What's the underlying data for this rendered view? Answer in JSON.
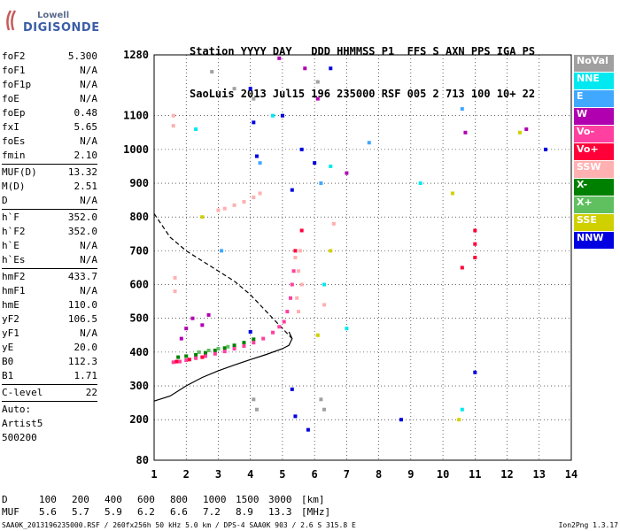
{
  "logo": {
    "brand": "Lowell",
    "product": "DIGISONDE"
  },
  "header": {
    "line1": "Station YYYY DAY   DDD HHMMSS P1  FFS S AXN PPS IGA PS",
    "line2": "SaoLuis 2013 Jul15 196 235000 RSF 005 2 713 100 10+ 22"
  },
  "params": {
    "block1": [
      {
        "name": "foF2",
        "value": "5.300"
      },
      {
        "name": "foF1",
        "value": "N/A"
      },
      {
        "name": "foF1p",
        "value": "N/A"
      },
      {
        "name": "foE",
        "value": "N/A"
      },
      {
        "name": "foEp",
        "value": "0.48"
      },
      {
        "name": "fxI",
        "value": "5.65"
      },
      {
        "name": "foEs",
        "value": "N/A"
      },
      {
        "name": "fmin",
        "value": "2.10"
      }
    ],
    "block2": [
      {
        "name": "MUF(D)",
        "value": "13.32"
      },
      {
        "name": "M(D)",
        "value": "2.51"
      },
      {
        "name": "D",
        "value": "N/A"
      }
    ],
    "block3": [
      {
        "name": "h`F",
        "value": "352.0"
      },
      {
        "name": "h`F2",
        "value": "352.0"
      },
      {
        "name": "h`E",
        "value": "N/A"
      },
      {
        "name": "h`Es",
        "value": "N/A"
      }
    ],
    "block4": [
      {
        "name": "hmF2",
        "value": "433.7"
      },
      {
        "name": "hmF1",
        "value": "N/A"
      },
      {
        "name": "hmE",
        "value": "110.0"
      },
      {
        "name": "yF2",
        "value": "106.5"
      },
      {
        "name": "yF1",
        "value": "N/A"
      },
      {
        "name": "yE",
        "value": "20.0"
      },
      {
        "name": "B0",
        "value": "112.3"
      },
      {
        "name": "B1",
        "value": "1.71"
      }
    ],
    "block5": [
      {
        "name": "C-level",
        "value": "22"
      }
    ],
    "autoscaling": [
      "Auto:",
      "Artist5",
      "500200"
    ]
  },
  "legend": [
    {
      "label": "NoVal",
      "color": "#a0a0a0"
    },
    {
      "label": "NNE",
      "color": "#00e8f0"
    },
    {
      "label": "E",
      "color": "#40a8ff"
    },
    {
      "label": "W",
      "color": "#b000b0"
    },
    {
      "label": "Vo-",
      "color": "#ff40a0"
    },
    {
      "label": "Vo+",
      "color": "#ff0038"
    },
    {
      "label": "SSW",
      "color": "#ffb0b0"
    },
    {
      "label": "X-",
      "color": "#008000"
    },
    {
      "label": "X+",
      "color": "#60c060"
    },
    {
      "label": "SSE",
      "color": "#d0d000"
    },
    {
      "label": "NNW",
      "color": "#0000e0"
    }
  ],
  "muf_table": {
    "d_label": "D",
    "d_values": [
      "100",
      "200",
      "400",
      "600",
      "800",
      "1000",
      "1500",
      "3000"
    ],
    "d_unit": "[km]",
    "muf_label": "MUF",
    "muf_values": [
      "5.6",
      "5.7",
      "5.9",
      "6.2",
      "6.6",
      "7.2",
      "8.9",
      "13.3"
    ],
    "muf_unit": "[MHz]"
  },
  "footer": {
    "left": "SAA0K_2013196235000.RSF / 260fx256h 50 kHz 5.0 km / DPS-4 SAA0K 903 / 2.6 S 315.8 E",
    "right": "Ion2Png 1.3.17"
  },
  "chart_data": {
    "type": "scatter",
    "title": "",
    "xlabel": "",
    "ylabel": "",
    "xlim": [
      1,
      14
    ],
    "ylim": [
      80,
      1280
    ],
    "x_ticks": [
      1,
      2,
      3,
      4,
      5,
      6,
      7,
      8,
      9,
      10,
      11,
      12,
      13,
      14
    ],
    "y_ticks": [
      80,
      200,
      300,
      400,
      500,
      600,
      700,
      800,
      900,
      1000,
      1100,
      1280
    ],
    "grid": true,
    "legend_position": "right",
    "series": [
      {
        "name": "X-",
        "color": "#008000",
        "points": [
          [
            1.75,
            385
          ],
          [
            2.0,
            388
          ],
          [
            2.3,
            392
          ],
          [
            2.6,
            398
          ],
          [
            2.9,
            405
          ],
          [
            3.2,
            412
          ],
          [
            3.5,
            420
          ],
          [
            3.8,
            428
          ],
          [
            4.1,
            438
          ]
        ]
      },
      {
        "name": "Vo-",
        "color": "#ff40a0",
        "points": [
          [
            1.6,
            370
          ],
          [
            1.8,
            372
          ],
          [
            2.0,
            376
          ],
          [
            2.3,
            382
          ],
          [
            2.6,
            388
          ],
          [
            2.9,
            395
          ],
          [
            3.2,
            402
          ],
          [
            3.5,
            410
          ],
          [
            3.8,
            418
          ],
          [
            4.1,
            428
          ],
          [
            4.4,
            440
          ],
          [
            4.7,
            458
          ],
          [
            4.9,
            475
          ],
          [
            5.05,
            490
          ],
          [
            5.15,
            520
          ],
          [
            5.25,
            560
          ],
          [
            5.3,
            600
          ],
          [
            5.35,
            640
          ]
        ]
      },
      {
        "name": "SSW",
        "color": "#ffb0b0",
        "points": [
          [
            1.65,
            620
          ],
          [
            1.65,
            580
          ],
          [
            3.0,
            820
          ],
          [
            3.2,
            825
          ],
          [
            3.5,
            835
          ],
          [
            3.8,
            845
          ],
          [
            4.1,
            858
          ],
          [
            4.3,
            870
          ],
          [
            5.4,
            680
          ],
          [
            5.5,
            640
          ],
          [
            5.6,
            600
          ],
          [
            5.45,
            560
          ],
          [
            5.5,
            520
          ],
          [
            5.55,
            700
          ],
          [
            1.6,
            1100
          ],
          [
            1.6,
            1070
          ],
          [
            6.3,
            540
          ],
          [
            6.6,
            780
          ]
        ]
      },
      {
        "name": "Vo+",
        "color": "#ff0038",
        "points": [
          [
            1.7,
            372
          ],
          [
            2.1,
            378
          ],
          [
            2.5,
            385
          ],
          [
            5.4,
            700
          ],
          [
            5.6,
            760
          ],
          [
            11.0,
            760
          ],
          [
            11.0,
            720
          ],
          [
            11.0,
            680
          ],
          [
            10.6,
            650
          ]
        ]
      },
      {
        "name": "W",
        "color": "#b000b0",
        "points": [
          [
            2.0,
            470
          ],
          [
            2.5,
            480
          ],
          [
            2.2,
            500
          ],
          [
            2.7,
            510
          ],
          [
            1.85,
            440
          ],
          [
            4.9,
            1270
          ],
          [
            5.7,
            1240
          ],
          [
            6.1,
            1150
          ],
          [
            7.0,
            930
          ],
          [
            10.7,
            1050
          ],
          [
            12.6,
            1060
          ]
        ]
      },
      {
        "name": "NNW",
        "color": "#0000e0",
        "points": [
          [
            4.0,
            1180
          ],
          [
            4.1,
            1080
          ],
          [
            4.2,
            980
          ],
          [
            5.0,
            1100
          ],
          [
            5.3,
            880
          ],
          [
            5.6,
            1000
          ],
          [
            6.0,
            960
          ],
          [
            6.5,
            1240
          ],
          [
            4.0,
            460
          ],
          [
            5.3,
            290
          ],
          [
            5.4,
            210
          ],
          [
            5.8,
            170
          ],
          [
            8.7,
            200
          ],
          [
            11.0,
            340
          ],
          [
            13.2,
            1000
          ]
        ]
      },
      {
        "name": "NNE",
        "color": "#00e8f0",
        "points": [
          [
            2.3,
            1060
          ],
          [
            4.7,
            1100
          ],
          [
            6.3,
            600
          ],
          [
            6.5,
            950
          ],
          [
            7.0,
            470
          ],
          [
            9.3,
            900
          ],
          [
            10.6,
            230
          ]
        ]
      },
      {
        "name": "E",
        "color": "#40a8ff",
        "points": [
          [
            3.1,
            700
          ],
          [
            4.3,
            960
          ],
          [
            6.2,
            900
          ],
          [
            7.7,
            1020
          ],
          [
            10.6,
            1120
          ]
        ]
      },
      {
        "name": "SSE",
        "color": "#d0d000",
        "points": [
          [
            2.5,
            800
          ],
          [
            6.1,
            450
          ],
          [
            6.5,
            700
          ],
          [
            10.5,
            200
          ],
          [
            10.3,
            870
          ],
          [
            12.4,
            1050
          ]
        ]
      },
      {
        "name": "X+",
        "color": "#60c060",
        "points": [
          [
            2.4,
            400
          ],
          [
            2.7,
            405
          ],
          [
            3.0,
            410
          ],
          [
            3.3,
            416
          ]
        ]
      },
      {
        "name": "NoVal",
        "color": "#a0a0a0",
        "points": [
          [
            2.8,
            1230
          ],
          [
            3.5,
            1180
          ],
          [
            4.1,
            1150
          ],
          [
            4.1,
            260
          ],
          [
            4.2,
            230
          ],
          [
            6.2,
            260
          ],
          [
            6.3,
            230
          ],
          [
            6.1,
            1200
          ]
        ]
      }
    ],
    "curves": [
      {
        "name": "profile_solid",
        "color": "#000000",
        "style": "solid",
        "points": [
          [
            1,
            255
          ],
          [
            1.5,
            270
          ],
          [
            2.0,
            300
          ],
          [
            2.5,
            325
          ],
          [
            3.0,
            345
          ],
          [
            3.5,
            362
          ],
          [
            4.0,
            378
          ],
          [
            4.5,
            393
          ],
          [
            5.0,
            410
          ],
          [
            5.2,
            420
          ],
          [
            5.3,
            440
          ],
          [
            5.2,
            460
          ]
        ]
      },
      {
        "name": "profile_dashed",
        "color": "#000000",
        "style": "dashed",
        "points": [
          [
            1,
            810
          ],
          [
            1.5,
            740
          ],
          [
            2.0,
            700
          ],
          [
            2.5,
            670
          ],
          [
            3.0,
            640
          ],
          [
            3.5,
            610
          ],
          [
            4.0,
            570
          ],
          [
            4.5,
            520
          ],
          [
            5.0,
            470
          ],
          [
            5.3,
            440
          ]
        ]
      }
    ]
  }
}
